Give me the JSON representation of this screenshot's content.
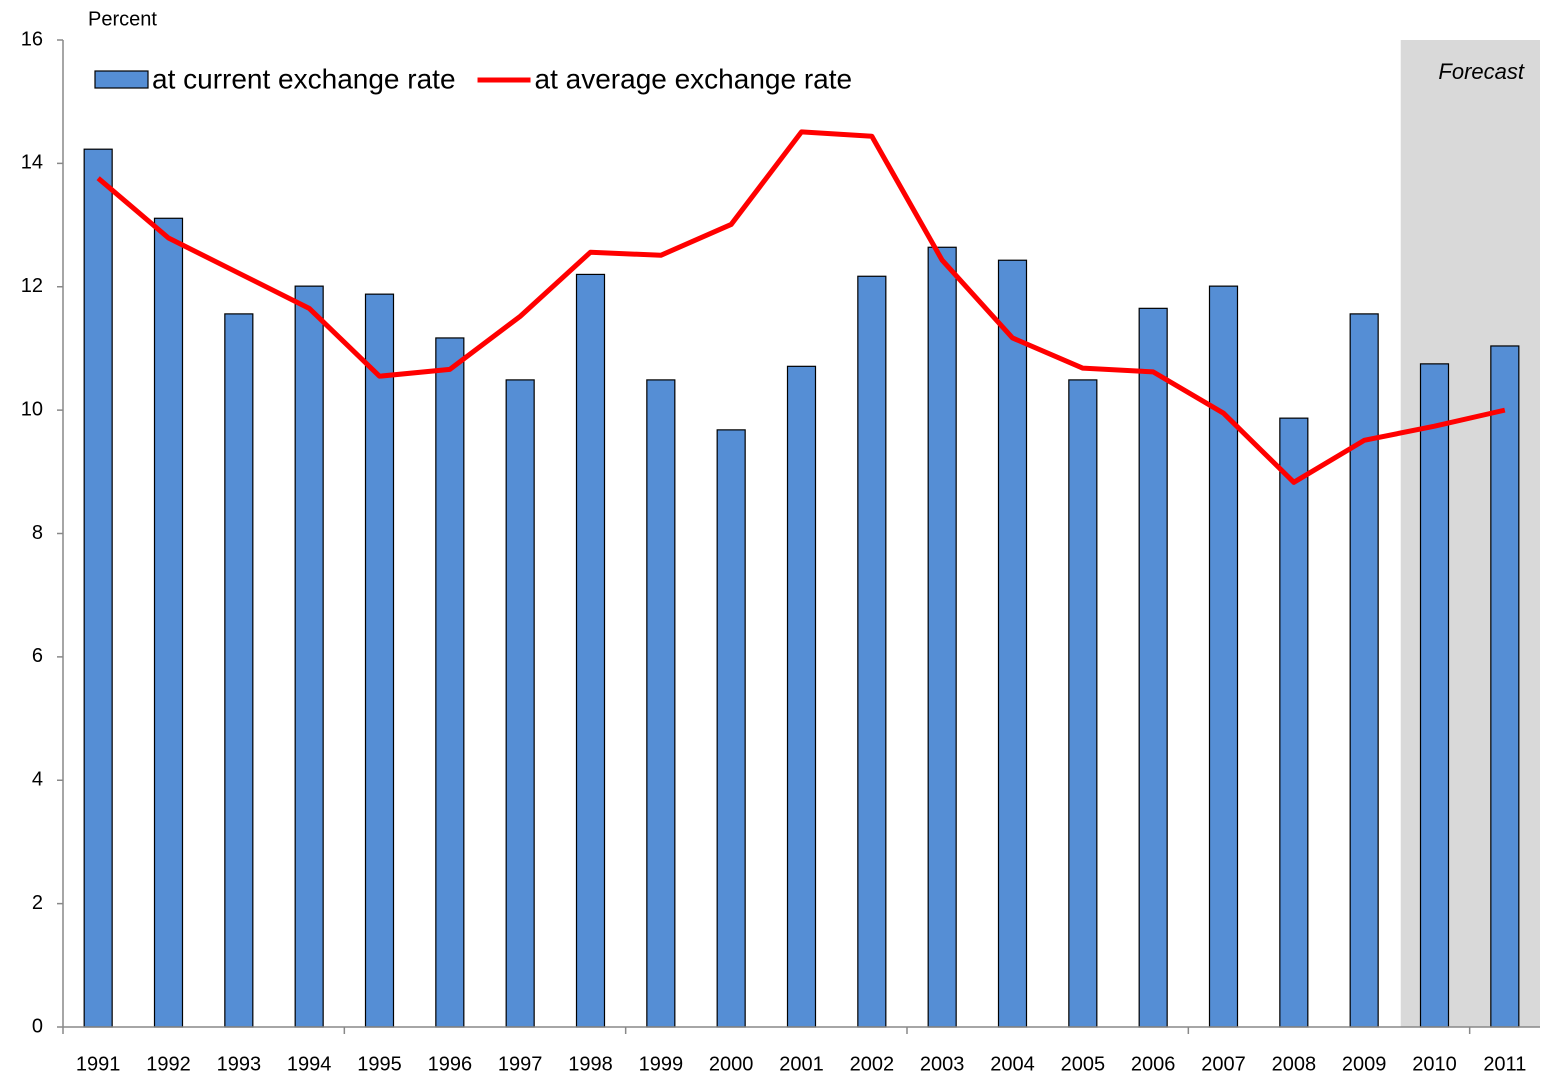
{
  "chart_data": {
    "type": "bar_line",
    "y_axis_label": "Percent",
    "categories": [
      "1991",
      "1992",
      "1993",
      "1994",
      "1995",
      "1996",
      "1997",
      "1998",
      "1999",
      "2000",
      "2001",
      "2002",
      "2003",
      "2004",
      "2005",
      "2006",
      "2007",
      "2008",
      "2009",
      "2010",
      "2011"
    ],
    "series": [
      {
        "name": "at current exchange rate",
        "type": "bar",
        "color": "#558ed5",
        "values": [
          14.23,
          13.11,
          11.56,
          12.01,
          11.88,
          11.17,
          10.49,
          12.2,
          10.49,
          9.68,
          10.71,
          12.17,
          12.64,
          12.43,
          10.49,
          11.65,
          12.01,
          9.87,
          11.56,
          10.75,
          11.04
        ]
      },
      {
        "name": "at average exchange rate",
        "type": "line",
        "color": "#ff0000",
        "values": [
          13.76,
          12.79,
          12.22,
          11.65,
          10.55,
          10.66,
          11.52,
          12.56,
          12.51,
          13.01,
          14.51,
          14.44,
          12.43,
          11.17,
          10.68,
          10.62,
          9.95,
          8.83,
          9.51,
          9.74,
          10.0
        ]
      }
    ],
    "shaded_region": {
      "label": "Forecast",
      "from": "2010",
      "to": "2011",
      "color": "#d9d9d9"
    },
    "ylim": [
      0,
      16
    ],
    "yticks": [
      0,
      2,
      4,
      6,
      8,
      10,
      12,
      14,
      16
    ],
    "grid": false
  }
}
